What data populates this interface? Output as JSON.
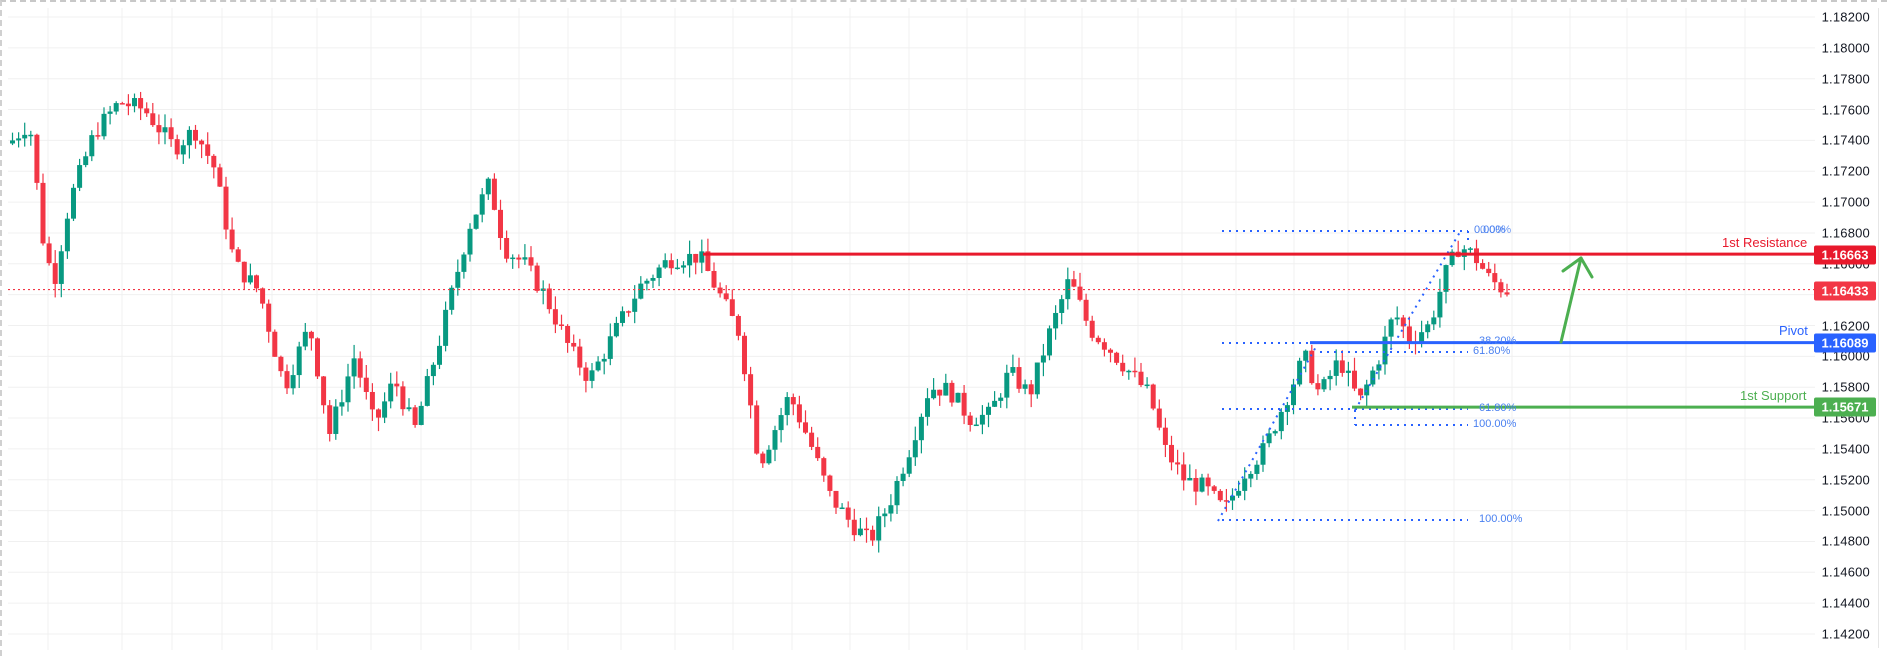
{
  "chart_data": {
    "type": "candlestick",
    "title": "",
    "instrument_hint": "EUR/USD-like price series",
    "xlabel": "",
    "ylabel": "",
    "ylim": [
      1.141,
      1.1825
    ],
    "grid": true,
    "y_ticks": [
      "1.18200",
      "1.18000",
      "1.17800",
      "1.17600",
      "1.17400",
      "1.17200",
      "1.17000",
      "1.16800",
      "1.16600",
      "1.16400",
      "1.16200",
      "1.16000",
      "1.15800",
      "1.15600",
      "1.15400",
      "1.15200",
      "1.15000",
      "1.14800",
      "1.14600",
      "1.14400",
      "1.14200"
    ],
    "levels": [
      {
        "name": "1st Resistance",
        "value": 1.16663,
        "label": "1.16663",
        "color": "#e8192c"
      },
      {
        "name": "Pivot",
        "value": 1.16089,
        "label": "1.16089",
        "color": "#2962ff"
      },
      {
        "name": "1st Support",
        "value": 1.15671,
        "label": "1.15671",
        "color": "#4caf50"
      }
    ],
    "current_price": {
      "value": 1.16433,
      "label": "1.16433",
      "color": "#f23645"
    },
    "fibonacci_labels": [
      "0.00%",
      "0.00%",
      "38.20%",
      "61.80%",
      "61.80%",
      "100.00%",
      "100.00%"
    ],
    "annotation": "Green arrow pointing up from Pivot toward 1st Resistance",
    "approx_swing_points": [
      {
        "label": "early high",
        "value": 1.1778
      },
      {
        "label": "left low",
        "value": 1.1543
      },
      {
        "label": "mid high",
        "value": 1.1727
      },
      {
        "label": "resistance touch",
        "value": 1.1667
      },
      {
        "label": "major low",
        "value": 1.147
      },
      {
        "label": "recovery high",
        "value": 1.1656
      },
      {
        "label": "recent low",
        "value": 1.1493
      },
      {
        "label": "recent high",
        "value": 1.1682
      },
      {
        "label": "last close",
        "value": 1.16433
      }
    ]
  },
  "axis": {
    "labels": [
      "1.18200",
      "1.18000",
      "1.17800",
      "1.17600",
      "1.17400",
      "1.17200",
      "1.17000",
      "1.16800",
      "1.16600",
      "1.16400",
      "1.16200",
      "1.16000",
      "1.15800",
      "1.15600",
      "1.15400",
      "1.15200",
      "1.15000",
      "1.14800",
      "1.14600",
      "1.14400",
      "1.14200"
    ]
  },
  "levels": {
    "resistance": {
      "caption": "1st Resistance",
      "tag": "1.16663",
      "color": "#e8192c"
    },
    "current": {
      "tag": "1.16433",
      "color": "#f23645"
    },
    "pivot": {
      "caption": "Pivot",
      "tag": "1.16089",
      "color": "#2962ff"
    },
    "support": {
      "caption": "1st Support",
      "tag": "1.15671",
      "color": "#4caf50"
    }
  },
  "fib": {
    "upper": {
      "l0": "0.00%",
      "l0b": "0.00%",
      "l382": "38.20%",
      "l618": "61.80%"
    },
    "lower": {
      "l618": "61.80%",
      "l100": "100.00%",
      "l100b": "100.00%"
    }
  },
  "colors": {
    "up": "#089981",
    "down": "#f23645",
    "fib": "#2962ff",
    "grid": "#f0f0f0"
  }
}
